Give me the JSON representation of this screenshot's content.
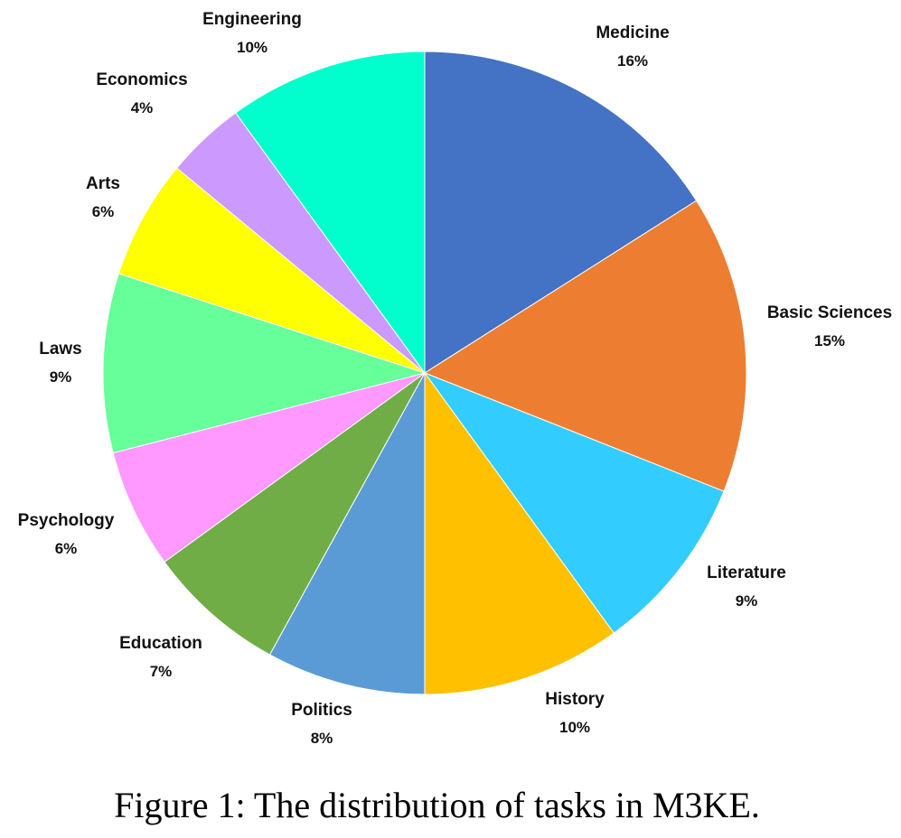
{
  "caption": "Figure 1: The distribution of tasks in M3KE.",
  "chart_data": {
    "type": "pie",
    "start_angle": "12 o'clock",
    "direction": "clockwise",
    "slices": [
      {
        "name": "Medicine",
        "value": 16,
        "label": "16%",
        "color": "#4472C4"
      },
      {
        "name": "Basic Sciences",
        "value": 15,
        "label": "15%",
        "color": "#ED7D31"
      },
      {
        "name": "Literature",
        "value": 9,
        "label": "9%",
        "color": "#33CCFF"
      },
      {
        "name": "History",
        "value": 10,
        "label": "10%",
        "color": "#FFC000"
      },
      {
        "name": "Politics",
        "value": 8,
        "label": "8%",
        "color": "#5B9BD5"
      },
      {
        "name": "Education",
        "value": 7,
        "label": "7%",
        "color": "#70AD47"
      },
      {
        "name": "Psychology",
        "value": 6,
        "label": "6%",
        "color": "#FF99FF"
      },
      {
        "name": "Laws",
        "value": 9,
        "label": "9%",
        "color": "#66FF99"
      },
      {
        "name": "Arts",
        "value": 6,
        "label": "6%",
        "color": "#FFFF00"
      },
      {
        "name": "Economics",
        "value": 4,
        "label": "4%",
        "color": "#CC99FF"
      },
      {
        "name": "Engineering",
        "value": 10,
        "label": "10%",
        "color": "#00FFCC"
      }
    ]
  }
}
